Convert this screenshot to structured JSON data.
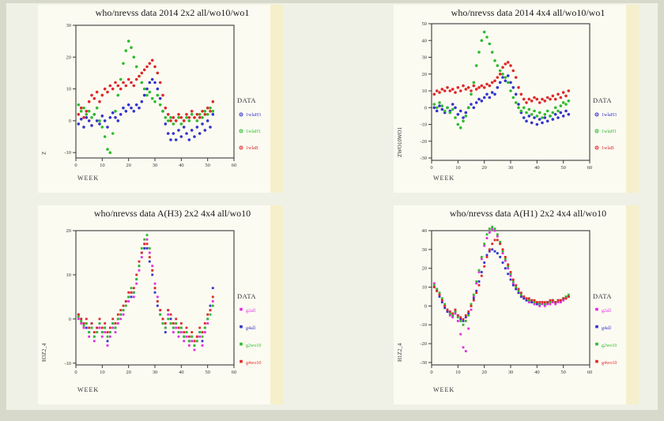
{
  "page": {
    "background": "#f0f1e6",
    "frame_color": "#d7d9cb",
    "panel_background": "#fcfbf2",
    "panel_strip": "#f6efcb"
  },
  "chart_data": [
    {
      "type": "scatter",
      "title": "who/nrevss data 2014 2x2 all/wo10/wo1",
      "xlabel": "WEEK",
      "ylabel": "Z",
      "legend_title": "DATA",
      "legend_position": "right",
      "grid": false,
      "marker": "circle",
      "xlim": [
        0,
        60
      ],
      "xticks": [
        0,
        10,
        20,
        30,
        40,
        50,
        60
      ],
      "ylim": [
        -11.7,
        30
      ],
      "yticks": [
        30,
        20,
        10,
        0,
        -10
      ],
      "weeks": [
        1,
        2,
        3,
        4,
        5,
        6,
        7,
        8,
        9,
        10,
        11,
        12,
        13,
        14,
        15,
        16,
        17,
        18,
        19,
        20,
        21,
        22,
        23,
        24,
        25,
        26,
        27,
        28,
        29,
        30,
        31,
        32,
        33,
        34,
        35,
        36,
        37,
        38,
        39,
        40,
        41,
        42,
        43,
        44,
        45,
        46,
        47,
        48,
        49,
        50,
        51,
        52
      ],
      "series": [
        {
          "name": "1wlaH3",
          "color": "#3434cc",
          "values": [
            -1,
            0.5,
            -2,
            1,
            0,
            -1.5,
            2,
            0,
            -1,
            1.5,
            0,
            -2,
            1,
            2.5,
            1,
            0,
            2,
            4,
            3,
            5,
            4,
            3,
            5,
            4,
            6,
            8,
            10,
            12,
            13,
            12,
            10,
            7,
            3,
            -1,
            -4,
            -6,
            -4,
            -6,
            -3,
            -5,
            -2,
            -4,
            -6,
            -3,
            -5,
            -2,
            -4,
            -1,
            -3,
            0,
            -2,
            2
          ]
        },
        {
          "name": "1wlaH1",
          "color": "#2fbb2f",
          "values": [
            5,
            3,
            4,
            2,
            3,
            1,
            2,
            4,
            0,
            -2,
            -5,
            -9,
            -10,
            -4,
            3,
            8,
            13,
            18,
            22,
            25,
            23,
            20,
            17,
            14,
            12,
            10,
            8,
            9,
            7,
            6,
            8,
            5,
            3,
            1,
            0,
            1,
            -1,
            0,
            1,
            -1,
            0,
            1,
            0,
            2,
            1,
            0,
            2,
            1,
            3,
            2,
            4,
            3
          ]
        },
        {
          "name": "1wlaB",
          "color": "#dd2a2a",
          "values": [
            2,
            4,
            1,
            3,
            6,
            8,
            7,
            9,
            6,
            8,
            10,
            9,
            11,
            10,
            12,
            11,
            10,
            12,
            11,
            13,
            12,
            11,
            13,
            14,
            15,
            16,
            17,
            18,
            19,
            17,
            15,
            12,
            8,
            4,
            2,
            0,
            1,
            0,
            2,
            1,
            0,
            2,
            1,
            3,
            1,
            2,
            1,
            3,
            2,
            4,
            3,
            6
          ]
        }
      ]
    },
    {
      "type": "scatter",
      "title": "who/nrevss data 2014 4x4 all/wo10/wo1",
      "xlabel": "WEEK",
      "ylabel": "ZWO10WO1",
      "legend_title": "DATA",
      "legend_position": "right",
      "grid": false,
      "marker": "circle",
      "xlim": [
        0,
        60
      ],
      "xticks": [
        0,
        10,
        20,
        30,
        40,
        50,
        60
      ],
      "ylim": [
        -31.4,
        50
      ],
      "yticks": [
        50,
        40,
        30,
        20,
        10,
        0,
        -10,
        -20,
        -30
      ],
      "weeks": [
        1,
        2,
        3,
        4,
        5,
        6,
        7,
        8,
        9,
        10,
        11,
        12,
        13,
        14,
        15,
        16,
        17,
        18,
        19,
        20,
        21,
        22,
        23,
        24,
        25,
        26,
        27,
        28,
        29,
        30,
        31,
        32,
        33,
        34,
        35,
        36,
        37,
        38,
        39,
        40,
        41,
        42,
        43,
        44,
        45,
        46,
        47,
        48,
        49,
        50,
        51,
        52
      ],
      "series": [
        {
          "name": "1wlaH3",
          "color": "#3434cc",
          "values": [
            0,
            -2,
            1,
            -1,
            -3,
            0,
            -2,
            2,
            0,
            -4,
            -2,
            -6,
            -3,
            0,
            2,
            0,
            3,
            5,
            4,
            6,
            8,
            6,
            9,
            8,
            12,
            15,
            18,
            16,
            19,
            15,
            12,
            8,
            2,
            -3,
            -6,
            -8,
            -5,
            -9,
            -6,
            -10,
            -7,
            -9,
            -6,
            -8,
            -5,
            -7,
            -4,
            -6,
            -3,
            -5,
            -2,
            -4
          ]
        },
        {
          "name": "1wlaH1",
          "color": "#2fbb2f",
          "values": [
            2,
            0,
            3,
            1,
            -2,
            0,
            -3,
            -1,
            -6,
            -10,
            -12,
            -8,
            -5,
            0,
            8,
            15,
            25,
            33,
            40,
            45,
            42,
            38,
            33,
            28,
            25,
            22,
            20,
            18,
            15,
            10,
            6,
            3,
            0,
            -2,
            0,
            -3,
            -1,
            -4,
            -2,
            -5,
            -3,
            -6,
            -4,
            -2,
            -5,
            -3,
            0,
            -2,
            1,
            3,
            2,
            4
          ]
        },
        {
          "name": "1wlaB",
          "color": "#dd2a2a",
          "values": [
            8,
            10,
            9,
            11,
            10,
            12,
            10,
            11,
            9,
            12,
            10,
            13,
            11,
            12,
            10,
            13,
            11,
            12,
            13,
            12,
            14,
            13,
            15,
            16,
            18,
            20,
            24,
            26,
            27,
            25,
            22,
            18,
            12,
            8,
            5,
            3,
            5,
            4,
            6,
            5,
            3,
            5,
            4,
            6,
            5,
            7,
            5,
            8,
            6,
            9,
            7,
            10
          ]
        }
      ]
    },
    {
      "type": "scatter",
      "title": "who/nrevss data A(H3) 2x2 4x4 all/wo10",
      "xlabel": "WEEK",
      "ylabel": "H3Z2_4",
      "legend_title": "DATA",
      "legend_position": "right",
      "grid": false,
      "marker": "square",
      "xlim": [
        0,
        60
      ],
      "xticks": [
        0,
        10,
        20,
        30,
        40,
        50,
        60
      ],
      "ylim": [
        -10.4,
        20
      ],
      "yticks": [
        20,
        10,
        0,
        -10
      ],
      "weeks": [
        1,
        2,
        3,
        4,
        5,
        6,
        7,
        8,
        9,
        10,
        11,
        12,
        13,
        14,
        15,
        16,
        17,
        18,
        19,
        20,
        21,
        22,
        23,
        24,
        25,
        26,
        27,
        28,
        29,
        30,
        31,
        32,
        33,
        34,
        35,
        36,
        37,
        38,
        39,
        40,
        41,
        42,
        43,
        44,
        45,
        46,
        47,
        48,
        49,
        50,
        51,
        52
      ],
      "series": [
        {
          "name": "g2all",
          "color": "#e030e0",
          "values": [
            0,
            -1,
            -2,
            -1,
            -4,
            -2,
            -5,
            -3,
            -2,
            -4,
            -3,
            -6,
            -4,
            -2,
            -3,
            -1,
            0,
            1,
            3,
            4,
            6,
            5,
            8,
            11,
            14,
            17,
            18,
            15,
            12,
            8,
            5,
            2,
            0,
            -2,
            1,
            -1,
            -3,
            -2,
            -4,
            -3,
            -5,
            -4,
            -6,
            -5,
            -7,
            -5,
            -4,
            -6,
            -3,
            -1,
            2,
            4
          ]
        },
        {
          "name": "g4all",
          "color": "#3434cc",
          "values": [
            1,
            0,
            -1,
            -2,
            -3,
            -1,
            -4,
            -2,
            -1,
            -3,
            -2,
            -5,
            -3,
            -1,
            -2,
            0,
            1,
            2,
            4,
            5,
            5,
            6,
            9,
            12,
            15,
            16,
            16,
            13,
            10,
            6,
            3,
            1,
            -1,
            -3,
            2,
            0,
            -2,
            -1,
            -3,
            -2,
            -4,
            -3,
            -5,
            -4,
            -6,
            -4,
            -3,
            -5,
            -2,
            0,
            3,
            7
          ]
        },
        {
          "name": "g2wo10",
          "color": "#2fbb2f",
          "values": [
            0.5,
            -0.5,
            -1.5,
            -1,
            -3,
            -2,
            -4,
            -3,
            -1,
            -3,
            -2,
            -4,
            -3,
            -1,
            -2,
            0,
            1,
            2,
            3,
            5,
            7,
            6,
            9,
            12,
            16,
            18,
            19,
            16,
            11,
            7,
            4,
            1,
            -1,
            -2,
            0,
            -1,
            -2,
            -1,
            -3,
            -2,
            -4,
            -3,
            -5,
            -4,
            -6,
            -5,
            -3,
            -4,
            -2,
            0,
            1,
            3
          ]
        },
        {
          "name": "g4wo10",
          "color": "#dd2a2a",
          "values": [
            1,
            0,
            -1,
            0,
            -2,
            -1,
            -3,
            -2,
            0,
            -2,
            -1,
            -3,
            -2,
            0,
            -1,
            1,
            2,
            3,
            4,
            6,
            6,
            7,
            10,
            13,
            15,
            17,
            17,
            14,
            11,
            7,
            4,
            2,
            0,
            -1,
            2,
            1,
            -1,
            0,
            -2,
            -1,
            -3,
            -2,
            -4,
            -3,
            -5,
            -4,
            -2,
            -3,
            -1,
            1,
            2,
            5
          ]
        }
      ]
    },
    {
      "type": "scatter",
      "title": "who/nrevss data A(H1) 2x2 4x4 all/wo10",
      "xlabel": "WEEK",
      "ylabel": "H1Z2_4",
      "legend_title": "DATA",
      "legend_position": "right",
      "grid": false,
      "marker": "square",
      "xlim": [
        0,
        60
      ],
      "xticks": [
        0,
        10,
        20,
        30,
        40,
        50,
        60
      ],
      "ylim": [
        -31.3,
        40
      ],
      "yticks": [
        40,
        30,
        20,
        10,
        0,
        -10,
        -20,
        -30
      ],
      "weeks": [
        1,
        2,
        3,
        4,
        5,
        6,
        7,
        8,
        9,
        10,
        11,
        12,
        13,
        14,
        15,
        16,
        17,
        18,
        19,
        20,
        21,
        22,
        23,
        24,
        25,
        26,
        27,
        28,
        29,
        30,
        31,
        32,
        33,
        34,
        35,
        36,
        37,
        38,
        39,
        40,
        41,
        42,
        43,
        44,
        45,
        46,
        47,
        48,
        49,
        50,
        51,
        52
      ],
      "series": [
        {
          "name": "g2all",
          "color": "#e030e0",
          "values": [
            12,
            9,
            6,
            3,
            0,
            -3,
            -5,
            -6,
            -4,
            -8,
            -15,
            -22,
            -24,
            -12,
            -2,
            5,
            12,
            18,
            25,
            32,
            36,
            39,
            41,
            40,
            37,
            33,
            28,
            24,
            20,
            16,
            12,
            9,
            7,
            5,
            4,
            3,
            2,
            2,
            1,
            1,
            0,
            1,
            0,
            1,
            1,
            2,
            1,
            2,
            2,
            3,
            4,
            5
          ]
        },
        {
          "name": "g4all",
          "color": "#3434cc",
          "values": [
            10,
            8,
            5,
            2,
            -1,
            -3,
            -4,
            -5,
            -3,
            -5,
            -7,
            -8,
            -6,
            -4,
            0,
            4,
            8,
            13,
            18,
            23,
            27,
            29,
            30,
            29,
            28,
            26,
            23,
            20,
            17,
            14,
            11,
            9,
            7,
            5,
            4,
            3,
            3,
            2,
            2,
            1,
            1,
            2,
            1,
            2,
            2,
            3,
            2,
            3,
            3,
            4,
            4,
            5
          ]
        },
        {
          "name": "g2wo10",
          "color": "#2fbb2f",
          "values": [
            11,
            9,
            7,
            4,
            1,
            -2,
            -4,
            -5,
            -3,
            -6,
            -8,
            -10,
            -8,
            -5,
            1,
            6,
            13,
            19,
            26,
            33,
            38,
            41,
            42,
            41,
            38,
            34,
            29,
            25,
            21,
            17,
            13,
            10,
            8,
            6,
            5,
            4,
            3,
            3,
            2,
            2,
            1,
            2,
            1,
            2,
            2,
            3,
            2,
            3,
            3,
            4,
            5,
            6
          ]
        },
        {
          "name": "g4wo10",
          "color": "#dd2a2a",
          "values": [
            10,
            8,
            6,
            3,
            0,
            -2,
            -3,
            -4,
            -2,
            -5,
            -6,
            -7,
            -5,
            -3,
            0,
            3,
            7,
            11,
            16,
            21,
            26,
            30,
            33,
            35,
            35,
            33,
            30,
            26,
            22,
            18,
            14,
            11,
            9,
            7,
            5,
            4,
            4,
            3,
            3,
            2,
            2,
            2,
            2,
            2,
            3,
            3,
            2,
            3,
            3,
            4,
            4,
            5
          ]
        }
      ]
    }
  ]
}
